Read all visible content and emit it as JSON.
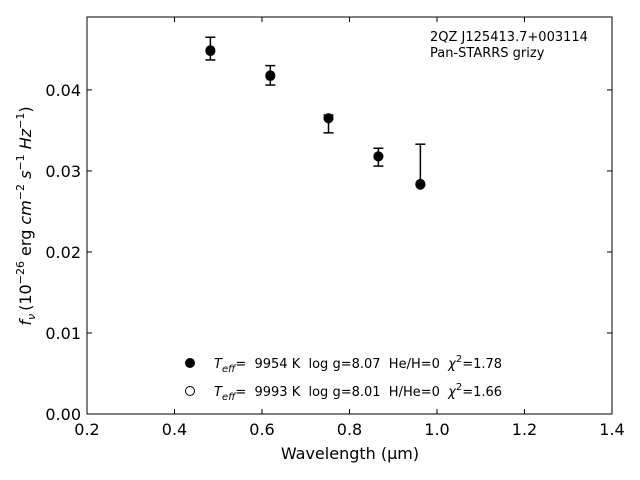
{
  "chart_data": {
    "type": "scatter",
    "title": "",
    "xlabel": "Wavelength",
    "xlabel_unit": "(μm)",
    "ylabel": "(10",
    "ylabel_exp": "−26",
    "ylabel_rest": " erg ",
    "ylabel_full": "fν (10−26 erg cm−2 s−1 Hz−1)",
    "xlim": [
      0.2,
      1.4
    ],
    "ylim": [
      0.0,
      0.049
    ],
    "xticks": [
      0.2,
      0.4,
      0.6,
      0.8,
      1.0,
      1.2,
      1.4
    ],
    "xtick_labels": [
      "0.2",
      "0.4",
      "0.6",
      "0.8",
      "1.0",
      "1.2",
      "1.4"
    ],
    "yticks": [
      0.0,
      0.01,
      0.02,
      0.03,
      0.04
    ],
    "ytick_labels": [
      "0.00",
      "0.01",
      "0.02",
      "0.03",
      "0.04"
    ],
    "grid": false,
    "annotation": {
      "line1": "2QZ J125413.7+003114",
      "line2": "Pan-STARRS grizy"
    },
    "observed": {
      "x": [
        0.482,
        0.619,
        0.752,
        0.866,
        0.962
      ],
      "y": [
        0.0451,
        0.0418,
        0.0358,
        0.0317,
        0.0308
      ],
      "yerr": [
        0.0014,
        0.0012,
        0.0011,
        0.0011,
        0.0025
      ]
    },
    "series": [
      {
        "marker": "filled",
        "x": [
          0.482,
          0.619,
          0.752,
          0.866,
          0.962
        ],
        "y": [
          0.0449,
          0.0418,
          0.0365,
          0.0318,
          0.0283
        ],
        "label": {
          "teff_sym": "T",
          "teff_sub": "eff",
          "teff": "=  9954 K  log g=8.07  He/H=0  ",
          "chi_sym": "χ",
          "chi_sup": "2",
          "chi": "=1.78"
        }
      },
      {
        "marker": "open",
        "x": [
          0.482,
          0.619,
          0.752,
          0.866,
          0.962
        ],
        "y": [
          0.0448,
          0.0417,
          0.0365,
          0.0318,
          0.0284
        ],
        "label": {
          "teff_sym": "T",
          "teff_sub": "eff",
          "teff": "=  9993 K  log g=8.01  H/He=0  ",
          "chi_sym": "χ",
          "chi_sup": "2",
          "chi": "=1.66"
        }
      }
    ],
    "legend": "lower-center",
    "colors": {
      "marker": "#000000",
      "axes": "#000000",
      "background": "#ffffff"
    }
  }
}
